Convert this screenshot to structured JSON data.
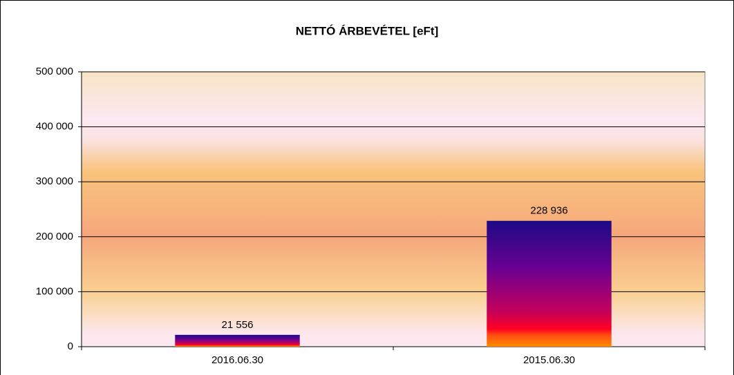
{
  "chart_data": {
    "type": "bar",
    "title": "NETTÓ ÁRBEVÉTEL [eFt]",
    "categories": [
      "2016.06.30",
      "2015.06.30"
    ],
    "values": [
      21556,
      228936
    ],
    "value_labels": [
      "21 556",
      "228 936"
    ],
    "ylim": [
      0,
      500000
    ],
    "yticks": [
      0,
      {
        "value": 100000,
        "label": "100 000"
      },
      {
        "value": 200000,
        "label": "200 000"
      },
      {
        "value": 300000,
        "label": "300 000"
      },
      {
        "value": 400000,
        "label": "400 000"
      },
      {
        "value": 500000,
        "label": "500 000"
      }
    ],
    "grid": true
  }
}
